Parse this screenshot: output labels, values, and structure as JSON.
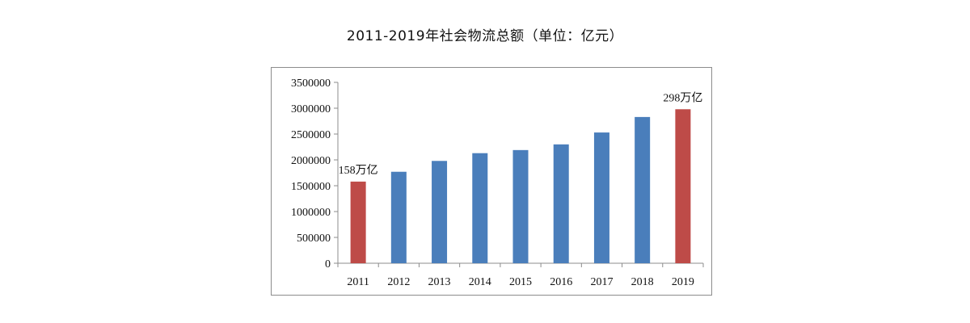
{
  "chart_data": {
    "type": "bar",
    "title": "2011-2019年社会物流总额（单位：亿元）",
    "categories": [
      "2011",
      "2012",
      "2013",
      "2014",
      "2015",
      "2016",
      "2017",
      "2018",
      "2019"
    ],
    "values": [
      1580000,
      1770000,
      1980000,
      2130000,
      2190000,
      2300000,
      2530000,
      2830000,
      2980000
    ],
    "highlight": [
      true,
      false,
      false,
      false,
      false,
      false,
      false,
      false,
      true
    ],
    "colors": {
      "default": "#4a7ebb",
      "highlight": "#be4b48"
    },
    "yticks": [
      0,
      500000,
      1000000,
      1500000,
      2000000,
      2500000,
      3000000,
      3500000
    ],
    "ylim": [
      0,
      3500000
    ],
    "xlabel": "",
    "ylabel": "",
    "annotations": [
      {
        "index": 0,
        "text": "158万亿"
      },
      {
        "index": 8,
        "text": "298万亿"
      }
    ]
  }
}
